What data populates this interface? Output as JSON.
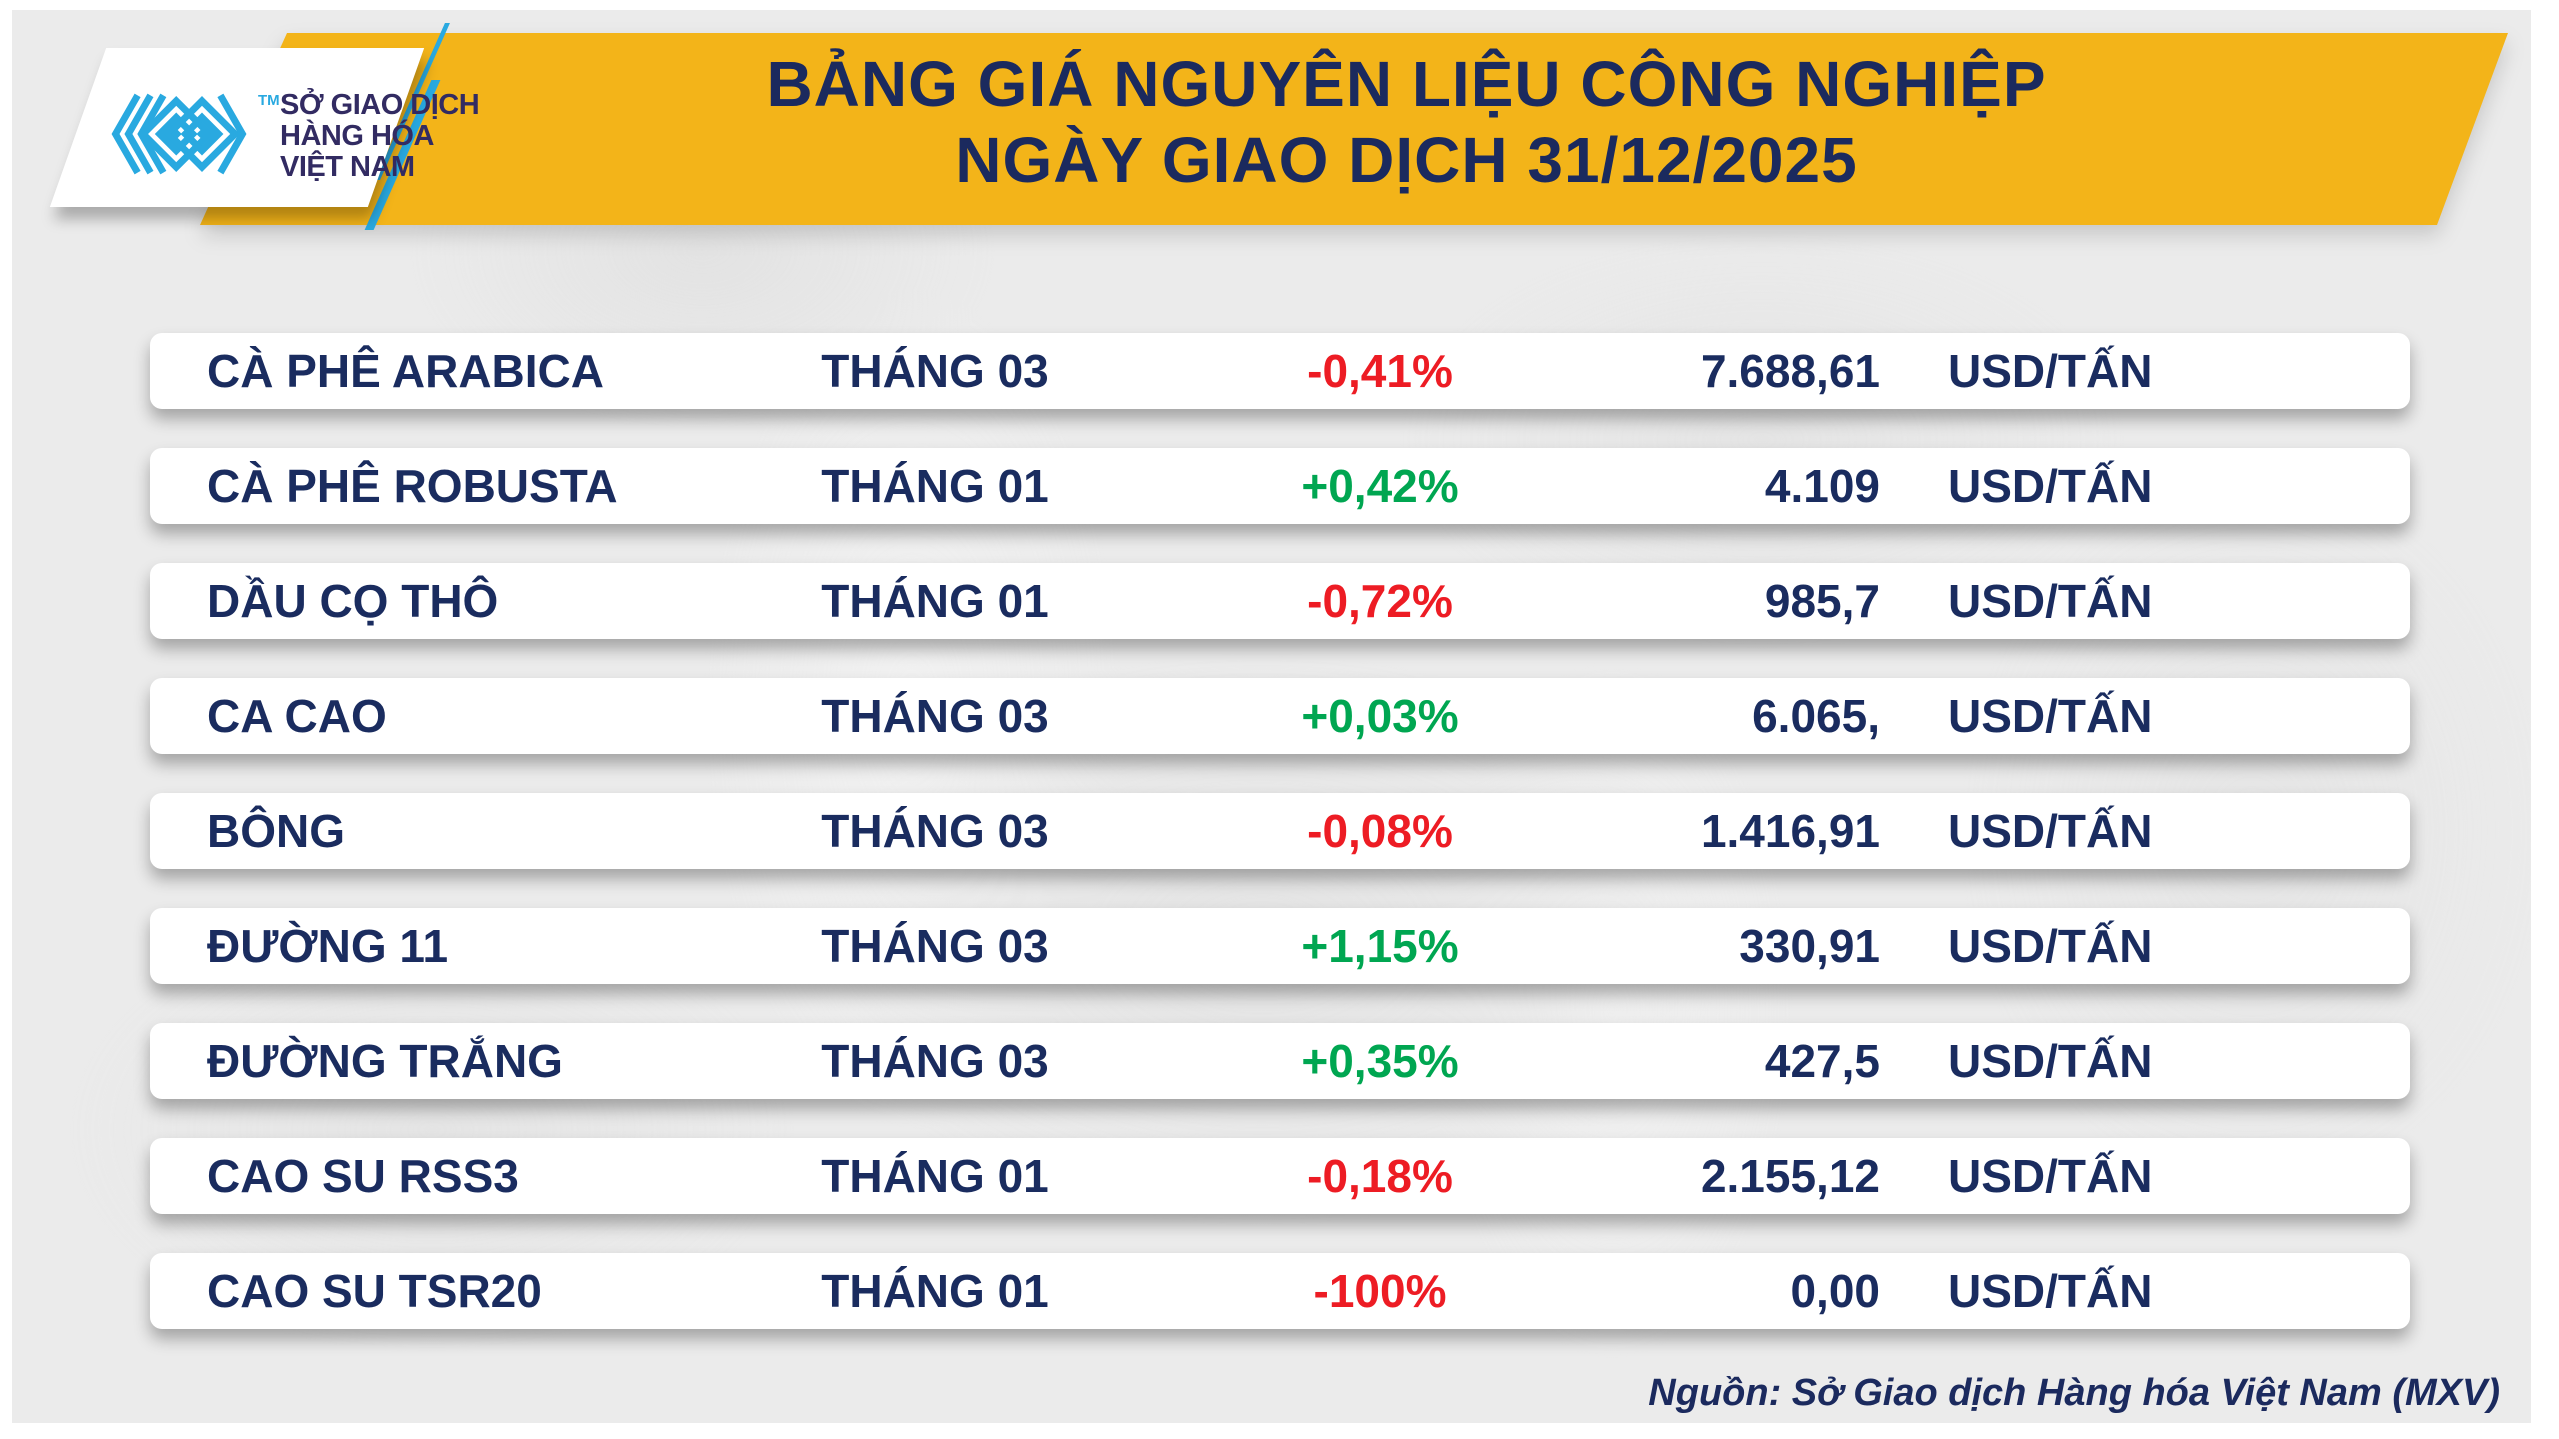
{
  "header": {
    "logo": {
      "line1": "SỞ GIAO DỊCH",
      "line2": "HÀNG HÓA",
      "line3": "VIỆT NAM",
      "tm": "TM"
    },
    "title_line1": "BẢNG GIÁ NGUYÊN LIỆU CÔNG NGHIỆP",
    "title_line2": "NGÀY GIAO DỊCH 31/12/2025"
  },
  "colors": {
    "banner_yellow": "#F3B419",
    "navy_text": "#1B2A5E",
    "row_text_navy": "#1A2C5F",
    "positive_green": "#00A651",
    "negative_red": "#ED1C24",
    "logo_cyan": "#29A9E0",
    "background_grey": "#EBEBEB"
  },
  "table": {
    "rows": [
      {
        "name": "CÀ PHÊ ARABICA",
        "month": "THÁNG 03",
        "change": "-0,41%",
        "price": "7.688,61",
        "unit": "USD/TẤN"
      },
      {
        "name": "CÀ PHÊ ROBUSTA",
        "month": "THÁNG 01",
        "change": "+0,42%",
        "price": "4.109",
        "unit": "USD/TẤN"
      },
      {
        "name": "DẦU CỌ THÔ",
        "month": "THÁNG 01",
        "change": "-0,72%",
        "price": "985,7",
        "unit": "USD/TẤN"
      },
      {
        "name": "CA CAO",
        "month": "THÁNG 03",
        "change": "+0,03%",
        "price": "6.065,",
        "unit": "USD/TẤN"
      },
      {
        "name": "BÔNG",
        "month": "THÁNG 03",
        "change": "-0,08%",
        "price": "1.416,91",
        "unit": "USD/TẤN"
      },
      {
        "name": "ĐƯỜNG 11",
        "month": "THÁNG 03",
        "change": "+1,15%",
        "price": "330,91",
        "unit": "USD/TẤN"
      },
      {
        "name": "ĐƯỜNG TRẮNG",
        "month": "THÁNG 03",
        "change": "+0,35%",
        "price": "427,5",
        "unit": "USD/TẤN"
      },
      {
        "name": "CAO SU RSS3",
        "month": "THÁNG 01",
        "change": "-0,18%",
        "price": "2.155,12",
        "unit": "USD/TẤN"
      },
      {
        "name": "CAO SU TSR20",
        "month": "THÁNG 01",
        "change": "-100%",
        "price": "0,00",
        "unit": "USD/TẤN"
      }
    ]
  },
  "footer": {
    "source": "Nguồn: Sở Giao dịch Hàng hóa Việt Nam (MXV)"
  },
  "chart_data": {
    "type": "table",
    "title": "BẢNG GIÁ NGUYÊN LIỆU CÔNG NGHIỆP",
    "subtitle": "NGÀY GIAO DỊCH 31/12/2025",
    "columns": [
      "commodity",
      "contract_month",
      "change_pct",
      "price",
      "unit"
    ],
    "rows": [
      [
        "CÀ PHÊ ARABICA",
        "THÁNG 03",
        "-0,41%",
        "7.688,61",
        "USD/TẤN"
      ],
      [
        "CÀ PHÊ ROBUSTA",
        "THÁNG 01",
        "+0,42%",
        "4.109",
        "USD/TẤN"
      ],
      [
        "DẦU CỌ THÔ",
        "THÁNG 01",
        "-0,72%",
        "985,7",
        "USD/TẤN"
      ],
      [
        "CA CAO",
        "THÁNG 03",
        "+0,03%",
        "6.065,",
        "USD/TẤN"
      ],
      [
        "BÔNG",
        "THÁNG 03",
        "-0,08%",
        "1.416,91",
        "USD/TẤN"
      ],
      [
        "ĐƯỜNG 11",
        "THÁNG 03",
        "+1,15%",
        "330,91",
        "USD/TẤN"
      ],
      [
        "ĐƯỜNG TRẮNG",
        "THÁNG 03",
        "+0,35%",
        "427,5",
        "USD/TẤN"
      ],
      [
        "CAO SU RSS3",
        "THÁNG 01",
        "-0,18%",
        "2.155,12",
        "USD/TẤN"
      ],
      [
        "CAO SU TSR20",
        "THÁNG 01",
        "-100%",
        "0,00",
        "USD/TẤN"
      ]
    ],
    "source": "Nguồn: Sở Giao dịch Hàng hóa Việt Nam (MXV)",
    "legend_position": "none",
    "grid": false
  }
}
